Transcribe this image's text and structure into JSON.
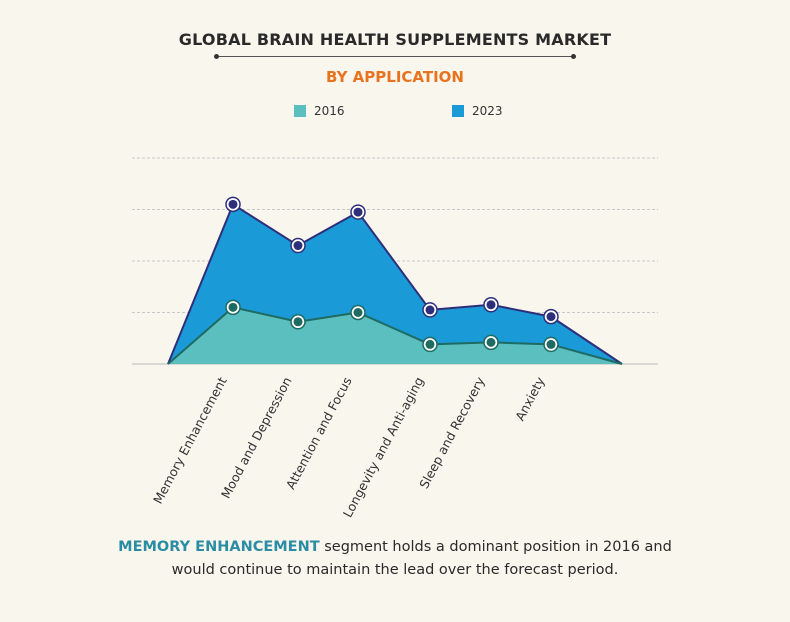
{
  "title": "GLOBAL BRAIN HEALTH SUPPLEMENTS MARKET",
  "subtitle": "BY APPLICATION",
  "colors": {
    "subtitle": "#e8731e",
    "highlight": "#2b8da3",
    "series_2016": "#5bbfbf",
    "series_2023": "#1a9ad6",
    "line_2016": "#1e6b62",
    "line_2023": "#2e2f7a",
    "grid": "#c8c8c8"
  },
  "chart_data": {
    "type": "area",
    "categories": [
      "Memory Enhancement",
      "Mood and Depression",
      "Attention and Focus",
      "Longevity and Anti-aging",
      "Sleep and Recovery",
      "Anxiety"
    ],
    "series": [
      {
        "name": "2016",
        "values": [
          1.1,
          0.82,
          1.0,
          0.38,
          0.42,
          0.38
        ]
      },
      {
        "name": "2023",
        "values": [
          3.1,
          2.3,
          2.95,
          1.05,
          1.15,
          0.92
        ]
      }
    ],
    "ylim": [
      0,
      4
    ],
    "grid": true,
    "legend": "top-center",
    "title": "GLOBAL BRAIN HEALTH SUPPLEMENTS MARKET",
    "subtitle": "BY APPLICATION",
    "xlabel": "",
    "ylabel": ""
  },
  "footnote": {
    "highlight": "MEMORY ENHANCEMENT",
    "text_line1": " segment holds a dominant position in 2016 and",
    "text_line2": "would continue to maintain the lead over the forecast period."
  }
}
